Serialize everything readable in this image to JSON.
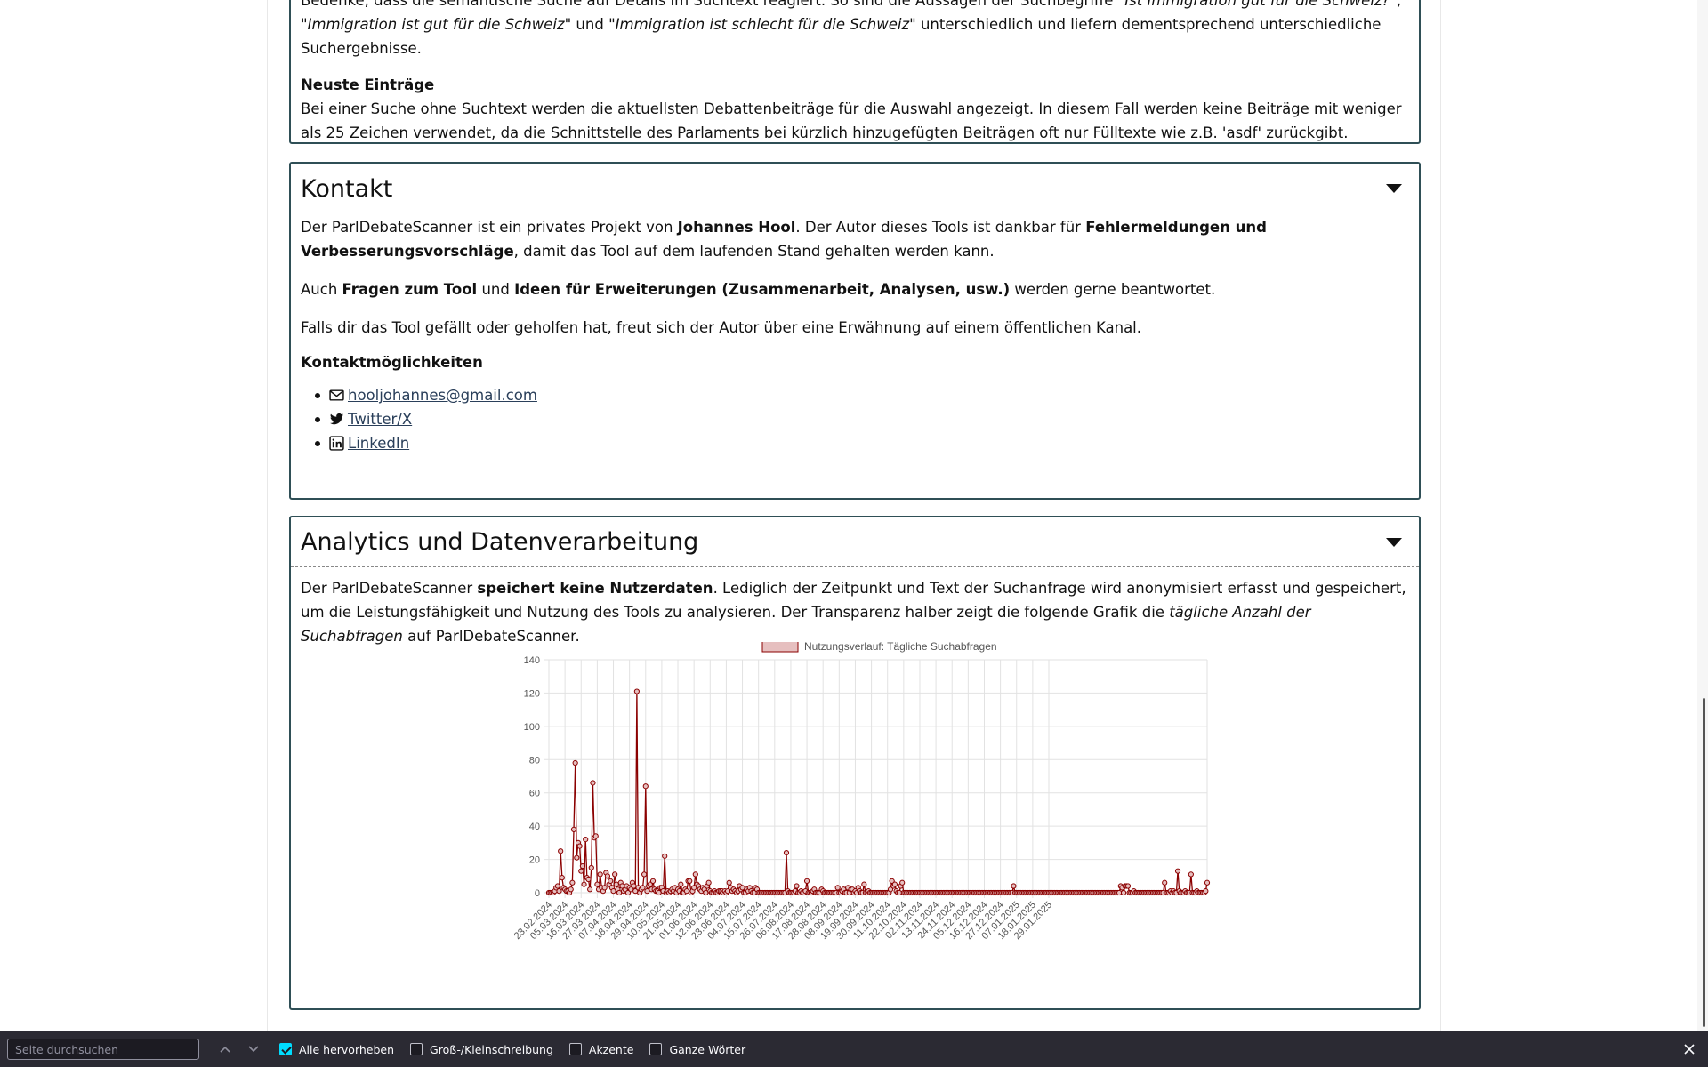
{
  "about": {
    "search_note_pre": "Bedenke, dass die semantische Suche auf Details im Suchtext reagiert. So sind die Aussagen der Suchbegriffe ",
    "term1": "\"Ist Immigration gut für die Schweiz?\"",
    "sep1": ", ",
    "term2": "\"Immigration ist gut für die Schweiz\"",
    "sep2": " und ",
    "term3": "\"Immigration ist schlecht für die Schweiz\"",
    "search_note_post": " unterschiedlich und liefern dementsprechend unterschiedliche Suchergebnisse.",
    "latest_heading": "Neuste Einträge",
    "latest_text": "Bei einer Suche ohne Suchtext werden die aktuellsten Debattenbeiträge für die Auswahl angezeigt. In diesem Fall werden keine Beiträge mit weniger als 25 Zeichen verwendet, da die Schnittstelle des Parlaments bei kürzlich hinzugefügten Beiträgen oft nur Fülltexte wie z.B. 'asdf' zurückgibt."
  },
  "contact": {
    "title": "Kontakt",
    "p1_a": "Der ParlDebateScanner ist ein privates Projekt von ",
    "p1_author": "Johannes Hool",
    "p1_b": ". Der Autor dieses Tools ist dankbar für ",
    "p1_bold": "Fehlermeldungen und Verbesserungsvorschläge",
    "p1_c": ", damit das Tool auf dem laufenden Stand gehalten werden kann.",
    "p2_a": "Auch ",
    "p2_bold1": "Fragen zum Tool",
    "p2_b": " und ",
    "p2_bold2": "Ideen für Erweiterungen (Zusammenarbeit, Analysen, usw.)",
    "p2_c": " werden gerne beantwortet.",
    "p3": "Falls dir das Tool gefällt oder geholfen hat, freut sich der Autor über eine Erwähnung auf einem öffentlichen Kanal.",
    "options_heading": "Kontaktmöglichkeiten",
    "links": [
      {
        "label": "hooljohannes@gmail.com",
        "icon": "mail-icon"
      },
      {
        "label": " Twitter/X",
        "icon": "twitter-icon"
      },
      {
        "label": " LinkedIn",
        "icon": "linkedin-icon"
      }
    ]
  },
  "analytics": {
    "title": "Analytics und Datenverarbeitung",
    "p_a": "Der ParlDebateScanner ",
    "p_bold": "speichert keine Nutzerdaten",
    "p_b": ". Lediglich der Zeitpunkt und Text der Suchanfrage wird anonymisiert erfasst und gespeichert, um die Leistungsfähigkeit und Nutzung des Tools zu analysieren. Der Transparenz halber zeigt die folgende Grafik die ",
    "p_italic": "tägliche Anzahl der Suchabfragen",
    "p_c": " auf ParlDebateScanner."
  },
  "chart_data": {
    "type": "line",
    "legend": "Nutzungsverlauf: Tägliche Suchabfragen",
    "legend_position": "top",
    "color": "#8b0000",
    "fill_color": "#e6bfbf",
    "grid": true,
    "ylim": [
      0,
      140
    ],
    "yticks": [
      0,
      20,
      40,
      60,
      80,
      100,
      120,
      140
    ],
    "xtick_labels": [
      "23.02.2024",
      "05.03.2024",
      "16.03.2024",
      "27.03.2024",
      "07.04.2024",
      "18.04.2024",
      "29.04.2024",
      "10.05.2024",
      "21.05.2024",
      "01.06.2024",
      "12.06.2024",
      "23.06.2024",
      "04.07.2024",
      "15.07.2024",
      "26.07.2024",
      "06.08.2024",
      "17.08.2024",
      "28.08.2024",
      "08.09.2024",
      "19.09.2024",
      "30.09.2024",
      "11.10.2024",
      "22.10.2024",
      "02.11.2024",
      "13.11.2024",
      "24.11.2024",
      "05.12.2024",
      "16.12.2024",
      "27.12.2024",
      "07.01.2025",
      "18.01.2025",
      "29.01.2025"
    ],
    "start_date": "23.02.2024",
    "values": [
      0,
      0,
      0,
      0,
      1,
      3,
      4,
      1,
      25,
      9,
      3,
      2,
      1,
      1,
      0,
      2,
      6,
      38,
      78,
      21,
      30,
      28,
      13,
      16,
      5,
      32,
      9,
      8,
      2,
      15,
      66,
      33,
      34,
      5,
      2,
      11,
      3,
      1,
      3,
      12,
      10,
      5,
      7,
      3,
      1,
      11,
      5,
      2,
      0,
      6,
      4,
      1,
      2,
      4,
      0,
      3,
      2,
      6,
      4,
      1,
      121,
      3,
      0,
      2,
      3,
      11,
      64,
      1,
      4,
      5,
      2,
      7,
      2,
      1,
      1,
      0,
      3,
      3,
      1,
      22,
      0,
      1,
      0,
      1,
      2,
      1,
      3,
      0,
      2,
      1,
      5,
      0,
      0,
      2,
      1,
      7,
      7,
      0,
      1,
      3,
      11,
      5,
      4,
      2,
      1,
      3,
      2,
      0,
      4,
      6,
      1,
      0,
      0,
      1,
      0,
      0,
      1,
      1,
      1,
      0,
      1,
      0,
      1,
      6,
      3,
      1,
      2,
      1,
      0,
      1,
      4,
      2,
      3,
      0,
      0,
      2,
      1,
      3,
      1,
      0,
      0,
      3,
      2,
      0,
      0,
      0,
      0,
      0,
      0,
      0,
      0,
      0,
      0,
      0,
      0,
      0,
      0,
      0,
      0,
      0,
      0,
      0,
      24,
      1,
      0,
      0,
      0,
      0,
      1,
      4,
      0,
      0,
      1,
      0,
      0,
      1,
      7,
      0,
      0,
      0,
      1,
      2,
      0,
      0,
      0,
      0,
      2,
      1,
      0,
      0,
      0,
      0,
      0,
      0,
      0,
      0,
      0,
      3,
      0,
      0,
      1,
      2,
      0,
      0,
      3,
      0,
      2,
      2,
      0,
      1,
      0,
      3,
      1,
      0,
      0,
      5,
      0,
      0,
      1,
      0,
      0,
      0,
      0,
      0,
      0,
      0,
      0,
      0,
      0,
      0,
      0,
      0,
      0,
      2,
      7,
      4,
      5,
      1,
      0,
      0,
      4,
      6,
      0,
      0,
      0,
      0,
      0,
      0,
      0,
      0,
      0,
      0,
      0,
      0,
      0,
      0,
      0,
      0,
      0,
      0,
      0,
      0,
      0,
      0,
      0,
      0,
      0,
      0,
      0,
      0,
      0,
      0,
      0,
      0,
      0,
      0,
      0,
      0,
      0,
      0,
      0,
      0,
      0,
      0,
      0,
      0,
      0,
      0,
      0,
      0,
      0,
      0,
      0,
      0,
      0,
      0,
      0,
      0,
      0,
      0,
      0,
      0,
      0,
      0,
      0,
      0,
      0,
      0,
      0,
      0,
      0,
      0,
      0,
      0,
      0,
      0,
      0,
      4,
      0,
      0,
      0,
      0,
      0,
      0,
      0,
      0,
      0,
      0,
      0,
      0,
      0,
      0,
      0,
      0,
      0,
      0,
      0,
      0,
      0,
      0,
      0,
      0,
      0,
      0,
      0,
      0,
      0,
      0,
      0,
      0,
      0,
      0,
      0,
      0,
      0,
      0,
      0,
      0,
      0,
      0,
      0,
      0,
      0,
      0,
      0,
      0,
      0,
      0,
      0,
      0,
      0,
      0,
      0,
      0,
      0,
      0,
      0,
      0,
      0,
      0,
      0,
      0,
      0,
      0,
      0,
      0,
      0,
      0,
      0,
      0,
      4,
      3,
      0,
      4,
      4,
      4,
      0,
      0,
      0,
      1,
      0,
      0,
      0,
      0,
      0,
      0,
      0,
      0,
      0,
      0,
      0,
      0,
      0,
      0,
      0,
      0,
      0,
      0,
      0,
      0,
      6,
      0,
      0,
      0,
      1,
      0,
      1,
      0,
      0,
      13,
      1,
      0,
      0,
      0,
      1,
      0,
      0,
      0,
      11,
      0,
      0,
      0,
      1,
      0,
      0,
      0,
      0,
      0,
      1,
      6
    ]
  },
  "findbar": {
    "placeholder": "Seite durchsuchen",
    "options": [
      {
        "label": "Alle hervorheben",
        "checked": true
      },
      {
        "label": "Groß-/Kleinschreibung",
        "checked": false
      },
      {
        "label": "Akzente",
        "checked": false
      },
      {
        "label": "Ganze Wörter",
        "checked": false
      }
    ]
  }
}
